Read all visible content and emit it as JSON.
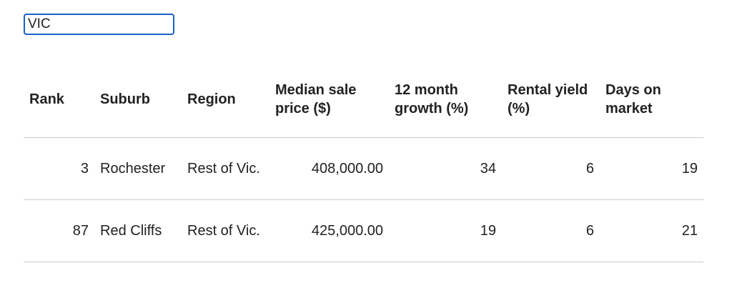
{
  "search": {
    "value": "VIC"
  },
  "table": {
    "headers": [
      "Rank",
      "Suburb",
      "Region",
      "Median sale price ($)",
      "12 month growth (%)",
      "Rental yield (%)",
      "Days on market"
    ],
    "rows": [
      [
        "3",
        "Rochester",
        "Rest of Vic.",
        "408,000.00",
        "34",
        "6",
        "19"
      ],
      [
        "87",
        "Red Cliffs",
        "Rest of Vic.",
        "425,000.00",
        "19",
        "6",
        "21"
      ]
    ]
  }
}
